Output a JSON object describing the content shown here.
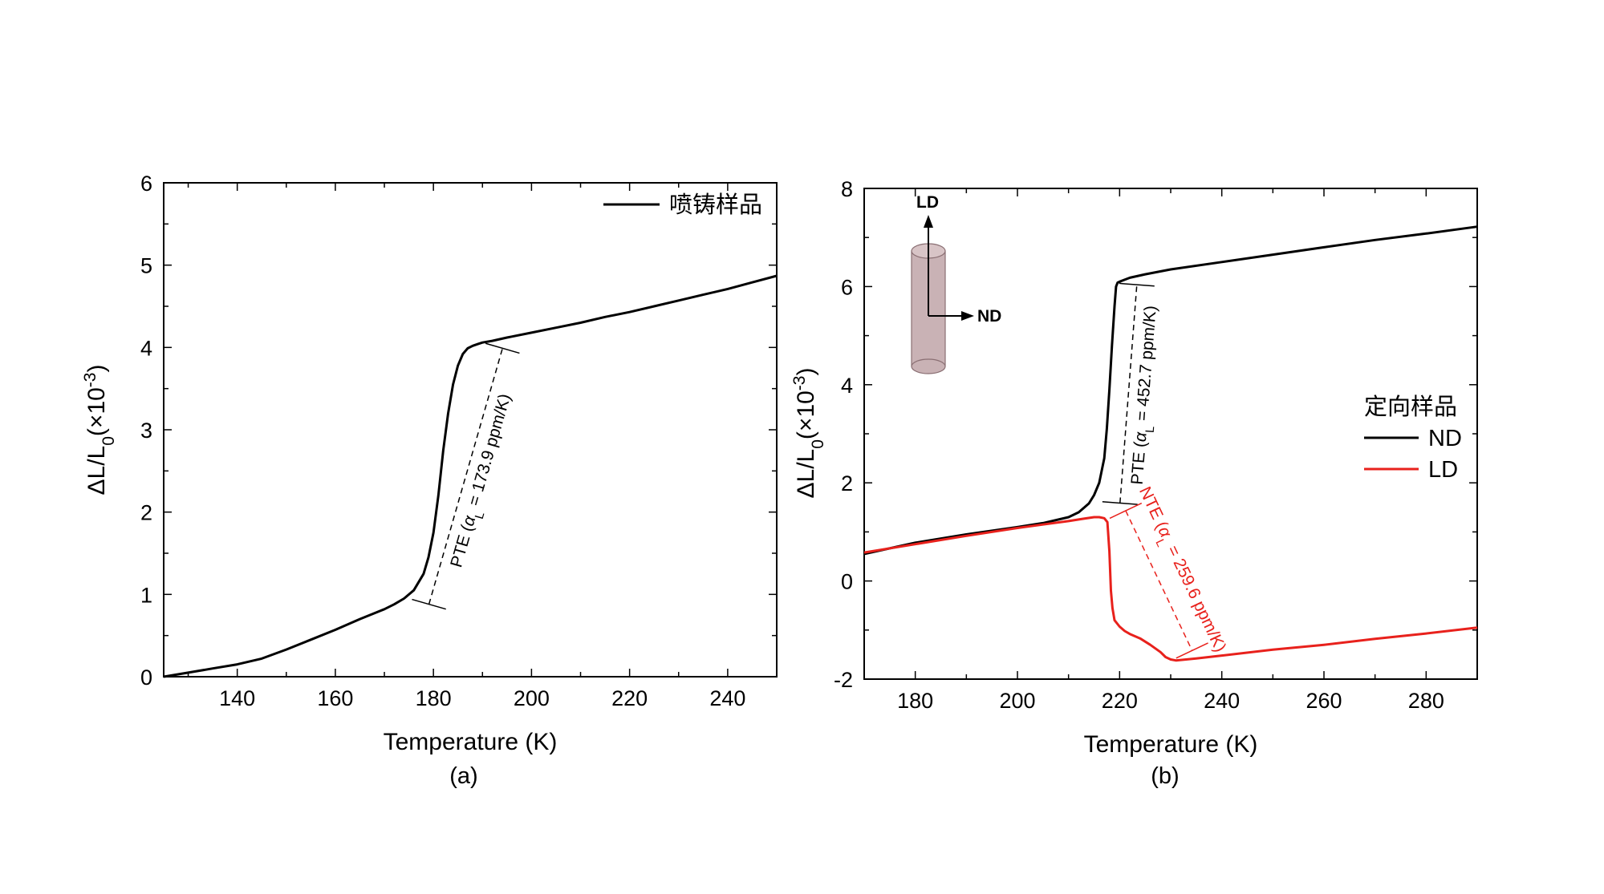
{
  "chart_data": [
    {
      "type": "line",
      "panel_label": "(a)",
      "xlabel": "Temperature (K)",
      "ylabel_main": "ΔL/L",
      "ylabel_sub": "0",
      "ylabel_unit": "(×10",
      "ylabel_exp": "-3",
      "ylabel_close": ")",
      "xlim": [
        125,
        250
      ],
      "ylim": [
        0,
        6
      ],
      "xticks": [
        140,
        160,
        180,
        200,
        220,
        240
      ],
      "xtick_labels": [
        "140",
        "160",
        "180",
        "200",
        "220",
        "240"
      ],
      "yticks": [
        0,
        1,
        2,
        3,
        4,
        5,
        6
      ],
      "ytick_labels": [
        "0",
        "1",
        "2",
        "3",
        "4",
        "5",
        "6"
      ],
      "legend": {
        "position": "top-right",
        "entries": [
          {
            "label": "喷铸样品",
            "color": "#000000"
          }
        ]
      },
      "series": [
        {
          "name": "喷铸样品",
          "color": "#000000",
          "x": [
            125,
            130,
            135,
            140,
            145,
            150,
            155,
            160,
            165,
            170,
            172,
            174,
            176,
            178,
            179,
            180,
            181,
            182,
            183,
            184,
            185,
            186,
            187,
            188,
            189,
            190,
            192,
            195,
            200,
            205,
            210,
            215,
            220,
            225,
            230,
            235,
            240,
            245,
            250
          ],
          "y": [
            0.0,
            0.05,
            0.1,
            0.15,
            0.22,
            0.33,
            0.45,
            0.57,
            0.7,
            0.82,
            0.88,
            0.95,
            1.05,
            1.25,
            1.45,
            1.75,
            2.2,
            2.75,
            3.2,
            3.55,
            3.78,
            3.92,
            3.99,
            4.02,
            4.04,
            4.06,
            4.08,
            4.12,
            4.18,
            4.24,
            4.3,
            4.37,
            4.43,
            4.5,
            4.57,
            4.64,
            4.71,
            4.79,
            4.87
          ]
        }
      ],
      "annotation": {
        "text_prefix": "PTE (",
        "alpha": "α",
        "alpha_sub": "L",
        "text_suffix": " = 173.9 ppm/K)",
        "color": "#000000",
        "from": [
          175,
          0.95
        ],
        "to": [
          190,
          4.06
        ]
      }
    },
    {
      "type": "line",
      "panel_label": "(b)",
      "xlabel": "Temperature (K)",
      "ylabel_main": "ΔL/L",
      "ylabel_sub": "0",
      "ylabel_unit": "(×10",
      "ylabel_exp": "-3",
      "ylabel_close": ")",
      "xlim": [
        170,
        290
      ],
      "ylim": [
        -2,
        8
      ],
      "xticks": [
        180,
        200,
        220,
        240,
        260,
        280
      ],
      "xtick_labels": [
        "180",
        "200",
        "220",
        "240",
        "260",
        "280"
      ],
      "yticks": [
        -2,
        0,
        2,
        4,
        6,
        8
      ],
      "ytick_labels": [
        "-2",
        "0",
        "2",
        "4",
        "6",
        "8"
      ],
      "legend": {
        "title": "定向样品",
        "position": "right",
        "entries": [
          {
            "label": "ND",
            "color": "#000000"
          },
          {
            "label": "LD",
            "color": "#e8211c"
          }
        ]
      },
      "series": [
        {
          "name": "ND",
          "color": "#000000",
          "x": [
            170,
            180,
            190,
            200,
            205,
            210,
            212,
            214,
            215,
            216,
            217,
            217.5,
            218,
            218.5,
            219,
            219.3,
            219.6,
            220,
            222,
            225,
            230,
            240,
            250,
            260,
            270,
            280,
            290
          ],
          "y": [
            0.55,
            0.78,
            0.95,
            1.1,
            1.18,
            1.3,
            1.4,
            1.58,
            1.75,
            2.0,
            2.5,
            3.1,
            3.9,
            4.8,
            5.6,
            6.0,
            6.08,
            6.1,
            6.18,
            6.25,
            6.35,
            6.5,
            6.65,
            6.8,
            6.95,
            7.08,
            7.22
          ]
        },
        {
          "name": "LD",
          "color": "#e8211c",
          "x": [
            170,
            180,
            190,
            200,
            205,
            210,
            213,
            215,
            216,
            217,
            217.6,
            218,
            218.3,
            218.6,
            219,
            220,
            221,
            222,
            224,
            226,
            228,
            229,
            230,
            231,
            235,
            240,
            250,
            260,
            270,
            280,
            290
          ],
          "y": [
            0.58,
            0.75,
            0.92,
            1.08,
            1.15,
            1.22,
            1.27,
            1.3,
            1.3,
            1.28,
            1.2,
            0.6,
            -0.2,
            -0.55,
            -0.8,
            -0.93,
            -1.02,
            -1.08,
            -1.17,
            -1.3,
            -1.45,
            -1.55,
            -1.6,
            -1.62,
            -1.58,
            -1.52,
            -1.4,
            -1.3,
            -1.18,
            -1.07,
            -0.95
          ]
        }
      ],
      "annotations": [
        {
          "text_prefix": "PTE (",
          "alpha": "α",
          "alpha_sub": "L",
          "text_suffix": " = 452.7 ppm/K)",
          "color": "#000000",
          "from": [
            216,
            1.62
          ],
          "to": [
            219.3,
            6.07
          ]
        },
        {
          "text_prefix": "NTE (",
          "alpha": "α",
          "alpha_sub": "L",
          "text_suffix": " = 259.6 ppm/K)",
          "color": "#e8211c",
          "from": [
            217.5,
            1.25
          ],
          "to": [
            230.5,
            -1.6
          ]
        }
      ],
      "inset": {
        "axis_up_label": "LD",
        "axis_right_label": "ND"
      }
    }
  ]
}
